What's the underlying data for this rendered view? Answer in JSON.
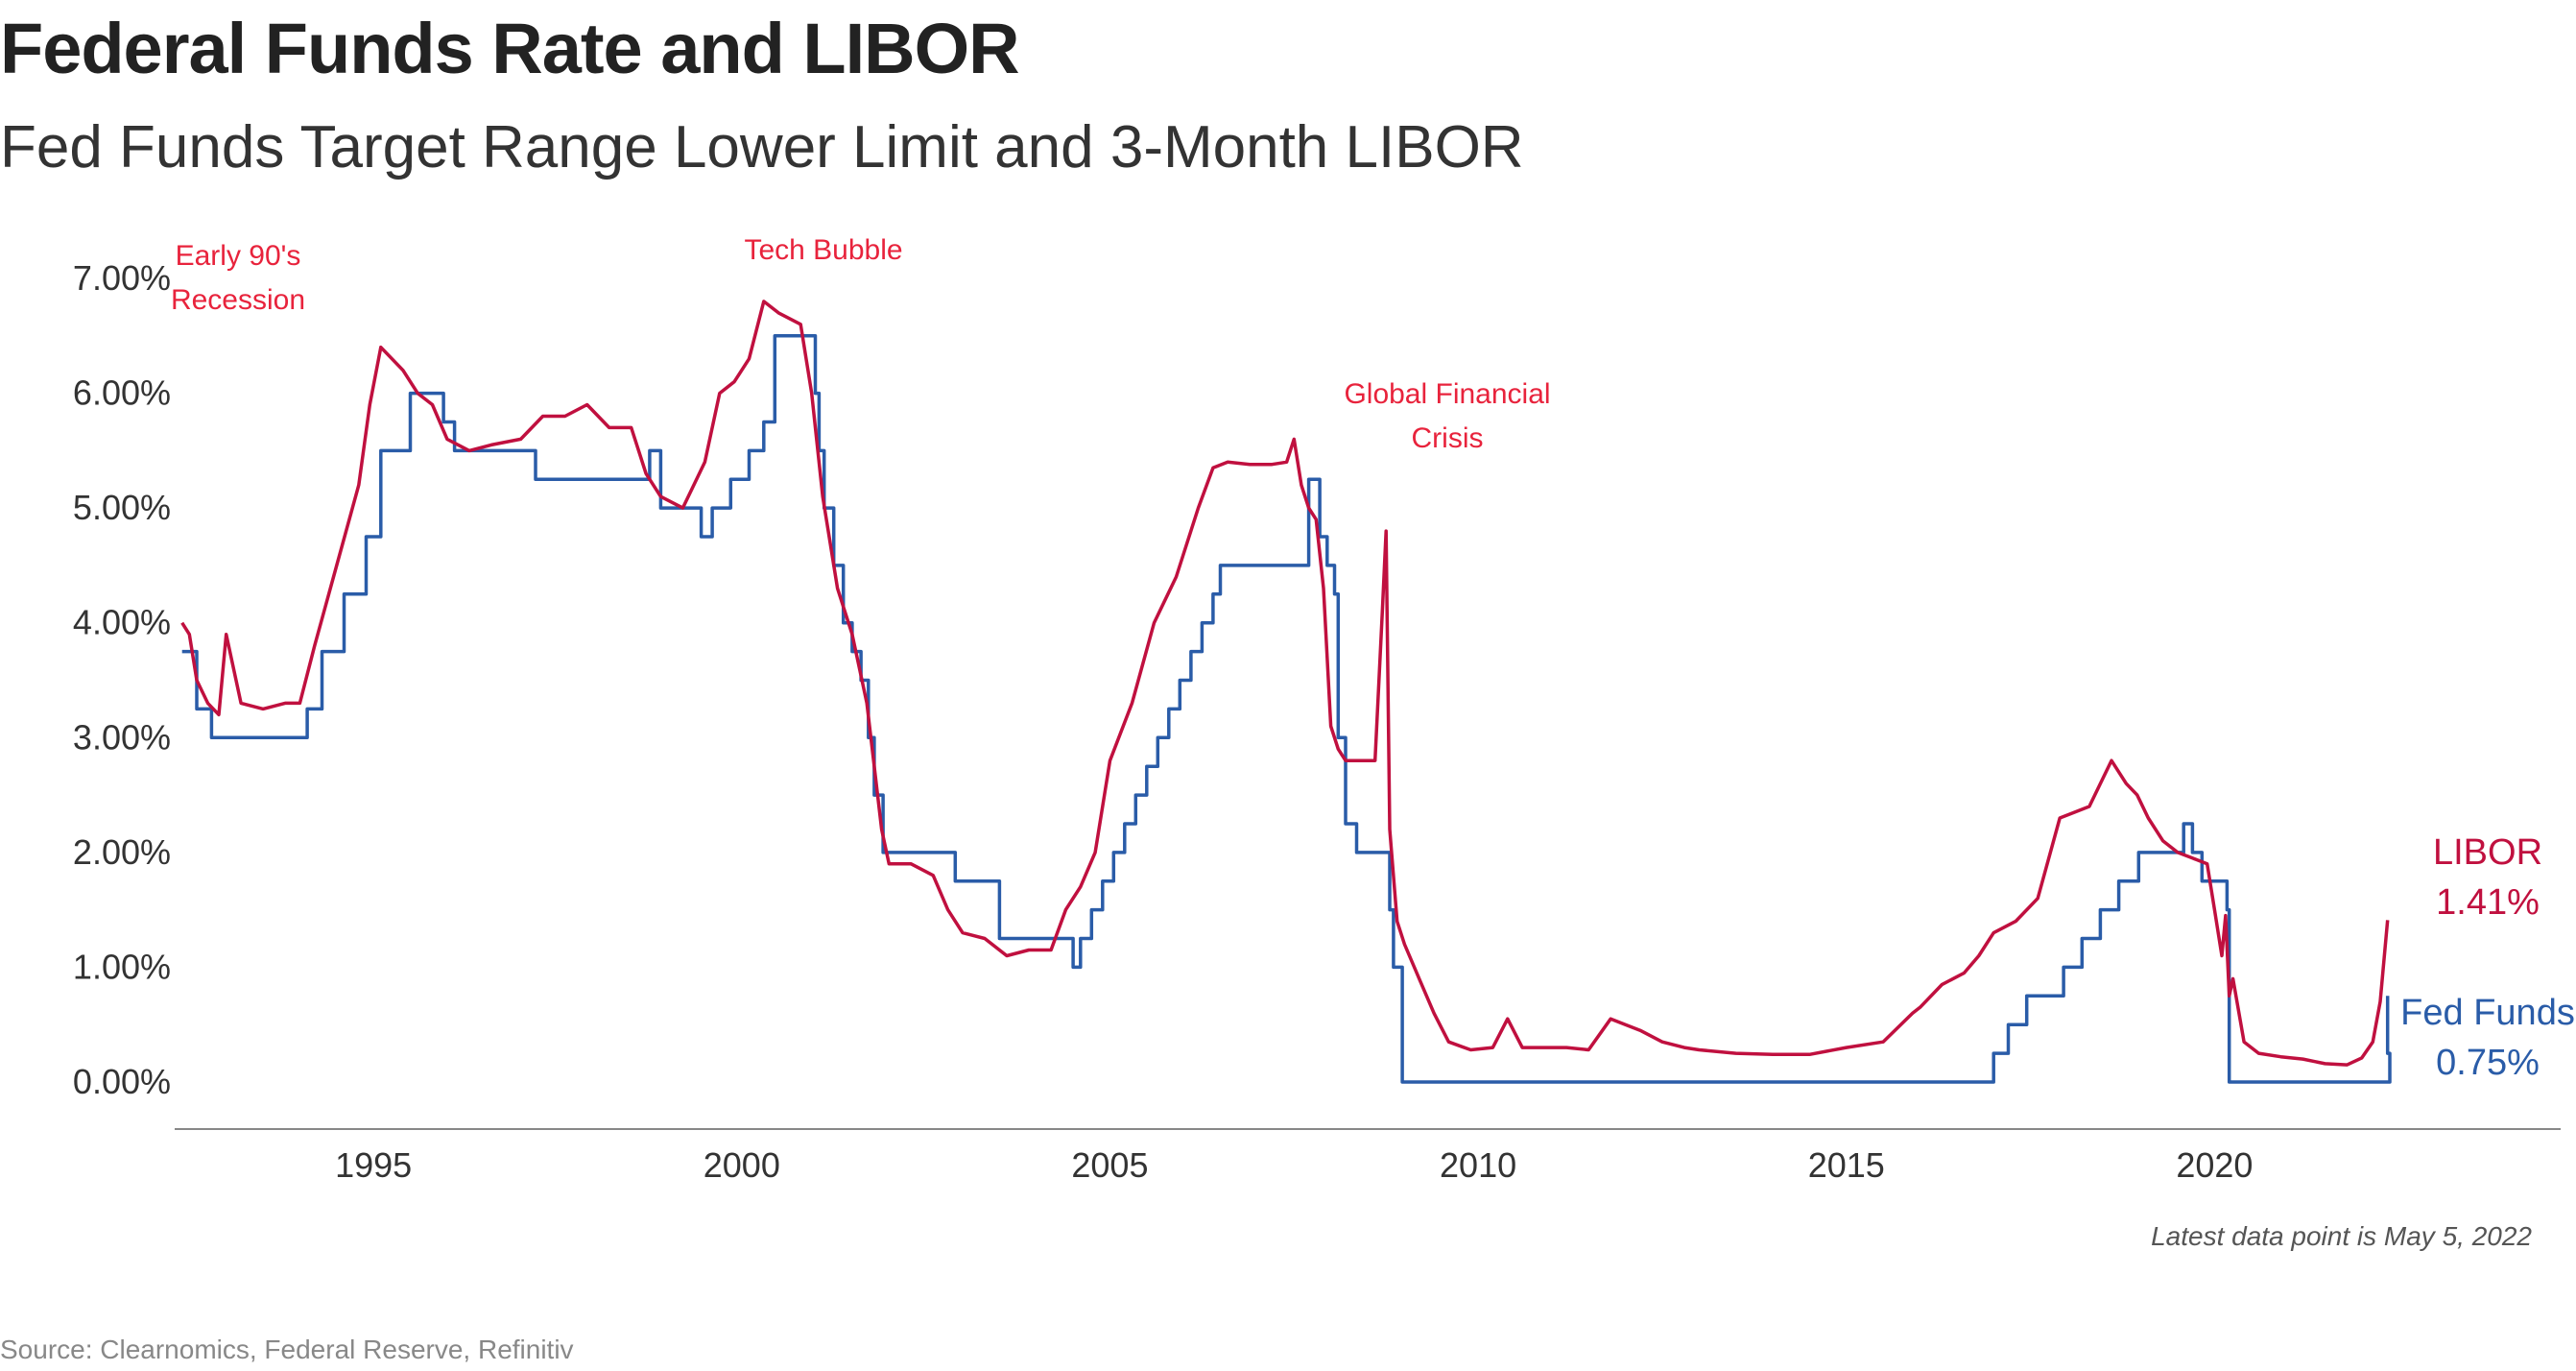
{
  "title": "Federal Funds Rate and LIBOR",
  "subtitle": "Fed Funds Target Range Lower Limit and 3-Month LIBOR",
  "note": "Latest data point is May 5, 2022",
  "source": "Source: Clearnomics, Federal Reserve, Refinitiv",
  "colors": {
    "libor": "#c0103f",
    "fed_funds": "#2a5ca8",
    "axis_text": "#333333",
    "annotation": "#e8233c"
  },
  "chart_data": {
    "type": "line",
    "title": "Federal Funds Rate and LIBOR",
    "subtitle": "Fed Funds Target Range Lower Limit and 3-Month LIBOR",
    "xlim": [
      1992.3,
      2024.7
    ],
    "ylim": [
      0,
      7
    ],
    "grid": false,
    "x_ticks": [
      1995,
      2000,
      2005,
      2010,
      2015,
      2020
    ],
    "y_ticks": [
      0,
      1,
      2,
      3,
      4,
      5,
      6,
      7
    ],
    "y_tick_labels": [
      "0.00%",
      "1.00%",
      "2.00%",
      "3.00%",
      "4.00%",
      "5.00%",
      "6.00%",
      "7.00%"
    ],
    "series": [
      {
        "name": "LIBOR",
        "end_label": "1.41%",
        "x": [
          1992.4,
          1992.5,
          1992.6,
          1992.75,
          1992.9,
          1993.0,
          1993.2,
          1993.5,
          1993.8,
          1994.0,
          1994.2,
          1994.5,
          1994.8,
          1994.95,
          1995.1,
          1995.4,
          1995.6,
          1995.8,
          1996.0,
          1996.3,
          1996.6,
          1997.0,
          1997.3,
          1997.6,
          1997.9,
          1998.2,
          1998.5,
          1998.7,
          1998.9,
          1999.2,
          1999.5,
          1999.7,
          1999.9,
          2000.1,
          2000.3,
          2000.5,
          2000.8,
          2000.95,
          2001.1,
          2001.3,
          2001.5,
          2001.7,
          2001.9,
          2002.0,
          2002.3,
          2002.6,
          2002.8,
          2003.0,
          2003.3,
          2003.6,
          2003.9,
          2004.2,
          2004.4,
          2004.6,
          2004.8,
          2005.0,
          2005.3,
          2005.6,
          2005.9,
          2006.2,
          2006.4,
          2006.6,
          2006.9,
          2007.2,
          2007.4,
          2007.5,
          2007.6,
          2007.7,
          2007.8,
          2007.9,
          2008.0,
          2008.1,
          2008.2,
          2008.4,
          2008.6,
          2008.7,
          2008.75,
          2008.8,
          2008.9,
          2009.0,
          2009.2,
          2009.4,
          2009.6,
          2009.9,
          2010.2,
          2010.4,
          2010.6,
          2010.9,
          2011.2,
          2011.5,
          2011.8,
          2012.0,
          2012.2,
          2012.5,
          2012.8,
          2013.0,
          2013.5,
          2014.0,
          2014.5,
          2015.0,
          2015.5,
          2015.9,
          2016.0,
          2016.3,
          2016.6,
          2016.8,
          2017.0,
          2017.3,
          2017.6,
          2017.9,
          2018.1,
          2018.3,
          2018.6,
          2018.8,
          2018.95,
          2019.1,
          2019.3,
          2019.5,
          2019.7,
          2019.9,
          2020.0,
          2020.1,
          2020.15,
          2020.2,
          2020.25,
          2020.4,
          2020.6,
          2020.9,
          2021.2,
          2021.5,
          2021.8,
          2022.0,
          2022.15,
          2022.25,
          2022.35
        ],
        "y": [
          4.0,
          3.9,
          3.5,
          3.3,
          3.2,
          3.9,
          3.3,
          3.25,
          3.3,
          3.3,
          3.8,
          4.5,
          5.2,
          5.9,
          6.4,
          6.2,
          6.0,
          5.9,
          5.6,
          5.5,
          5.55,
          5.6,
          5.8,
          5.8,
          5.9,
          5.7,
          5.7,
          5.3,
          5.1,
          5.0,
          5.4,
          6.0,
          6.1,
          6.3,
          6.8,
          6.7,
          6.6,
          6.0,
          5.1,
          4.3,
          3.9,
          3.3,
          2.2,
          1.9,
          1.9,
          1.8,
          1.5,
          1.3,
          1.25,
          1.1,
          1.15,
          1.15,
          1.5,
          1.7,
          2.0,
          2.8,
          3.3,
          4.0,
          4.4,
          5.0,
          5.35,
          5.4,
          5.38,
          5.38,
          5.4,
          5.6,
          5.2,
          5.0,
          4.9,
          4.3,
          3.1,
          2.9,
          2.8,
          2.8,
          2.8,
          4.1,
          4.8,
          2.2,
          1.4,
          1.2,
          0.9,
          0.6,
          0.35,
          0.28,
          0.3,
          0.55,
          0.3,
          0.3,
          0.3,
          0.28,
          0.55,
          0.5,
          0.45,
          0.35,
          0.3,
          0.28,
          0.25,
          0.24,
          0.24,
          0.3,
          0.35,
          0.6,
          0.65,
          0.85,
          0.95,
          1.1,
          1.3,
          1.4,
          1.6,
          2.3,
          2.35,
          2.4,
          2.8,
          2.6,
          2.5,
          2.3,
          2.1,
          2.0,
          1.95,
          1.9,
          1.5,
          1.1,
          1.45,
          0.75,
          0.9,
          0.35,
          0.25,
          0.22,
          0.2,
          0.16,
          0.15,
          0.21,
          0.35,
          0.7,
          1.41
        ]
      },
      {
        "name": "Fed Funds",
        "end_label": "0.75%",
        "x": [
          1992.4,
          1992.6,
          1992.8,
          1994.1,
          1994.3,
          1994.6,
          1994.9,
          1995.1,
          1995.5,
          1995.95,
          1996.1,
          1997.2,
          1998.75,
          1998.9,
          1999.45,
          1999.6,
          1999.85,
          2000.1,
          2000.3,
          2000.45,
          2001.0,
          2001.05,
          2001.12,
          2001.25,
          2001.38,
          2001.5,
          2001.62,
          2001.72,
          2001.8,
          2001.92,
          2002.9,
          2003.5,
          2004.5,
          2004.6,
          2004.75,
          2004.9,
          2005.05,
          2005.2,
          2005.35,
          2005.5,
          2005.65,
          2005.8,
          2005.95,
          2006.1,
          2006.25,
          2006.4,
          2006.5,
          2007.7,
          2007.85,
          2007.95,
          2008.05,
          2008.1,
          2008.2,
          2008.35,
          2008.8,
          2008.85,
          2008.97,
          2016.0,
          2017.0,
          2017.2,
          2017.45,
          2017.95,
          2018.2,
          2018.45,
          2018.7,
          2018.97,
          2019.58,
          2019.7,
          2019.83,
          2020.17,
          2020.2,
          2022.2,
          2022.38,
          2022.35
        ],
        "y": [
          3.75,
          3.25,
          3.0,
          3.25,
          3.75,
          4.25,
          4.75,
          5.5,
          6.0,
          5.75,
          5.5,
          5.25,
          5.5,
          5.0,
          4.75,
          5.0,
          5.25,
          5.5,
          5.75,
          6.5,
          6.0,
          5.5,
          5.0,
          4.5,
          4.0,
          3.75,
          3.5,
          3.0,
          2.5,
          2.0,
          1.75,
          1.25,
          1.0,
          1.25,
          1.5,
          1.75,
          2.0,
          2.25,
          2.5,
          2.75,
          3.0,
          3.25,
          3.5,
          3.75,
          4.0,
          4.25,
          4.5,
          5.25,
          4.75,
          4.5,
          4.25,
          3.0,
          2.25,
          2.0,
          1.5,
          1.0,
          0.0,
          0.0,
          0.25,
          0.5,
          0.75,
          1.0,
          1.25,
          1.5,
          1.75,
          2.0,
          2.25,
          2.0,
          1.75,
          1.5,
          0.0,
          0.0,
          0.25,
          0.75
        ]
      }
    ],
    "annotations": [
      {
        "text_lines": [
          "Early 90's",
          "Recession"
        ],
        "x": 1993.0,
        "y": 7.0
      },
      {
        "text_lines": [
          "Tech Bubble"
        ],
        "x": 2000.8,
        "y": 7.06
      },
      {
        "text_lines": [
          "Global Financial",
          "Crisis"
        ],
        "x": 2008.6,
        "y": 5.9
      }
    ]
  }
}
